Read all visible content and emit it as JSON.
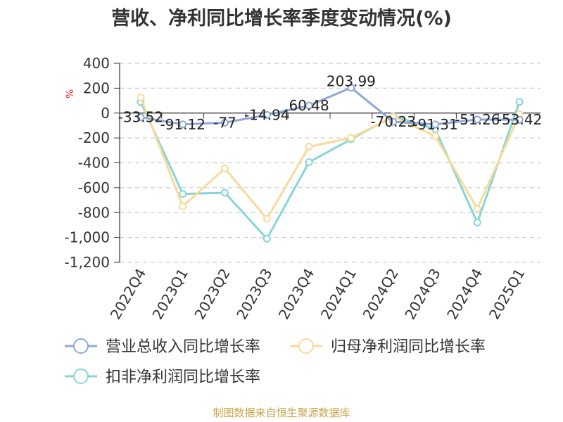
{
  "chart_data": {
    "type": "line",
    "title": "营收、净利同比增长率季度变动情况(%)",
    "ylabel": "%",
    "ylim": [
      -1200,
      400
    ],
    "yticks": [
      400,
      200,
      0,
      -200,
      -400,
      -600,
      -800,
      -1000,
      -1200
    ],
    "ytick_labels": [
      "400",
      "200",
      "0",
      "-200",
      "-400",
      "-600",
      "-800",
      "-1,000",
      "-1,200"
    ],
    "grid": true,
    "legend_position": "bottom",
    "categories": [
      "2022Q4",
      "2023Q1",
      "2023Q2",
      "2023Q3",
      "2023Q4",
      "2024Q1",
      "2024Q2",
      "2024Q3",
      "2024Q4",
      "2025Q1"
    ],
    "series": [
      {
        "name": "营业总收入同比增长率",
        "color": "#8fa8d8",
        "values": [
          -33.52,
          -91.12,
          -77,
          -14.94,
          60.48,
          203.99,
          -70.23,
          -91.31,
          -51.26,
          -53.42
        ],
        "labels": [
          "-33.52",
          "-91.12",
          "-77",
          "-14.94",
          "60.48",
          "203.99",
          "-70.23",
          "-91.31",
          "-51.26",
          "-53.42"
        ]
      },
      {
        "name": "归母净利润同比增长率",
        "color": "#fbd99a",
        "values": [
          125,
          -750,
          -445,
          -850,
          -270,
          -200,
          -30,
          -185,
          -770,
          -10
        ]
      },
      {
        "name": "扣非净利润同比增长率",
        "color": "#86d6d6",
        "values": [
          90,
          -650,
          -640,
          -1010,
          -395,
          -210,
          -25,
          -130,
          -880,
          90
        ]
      }
    ]
  },
  "source": "制图数据来自恒生聚源数据库"
}
